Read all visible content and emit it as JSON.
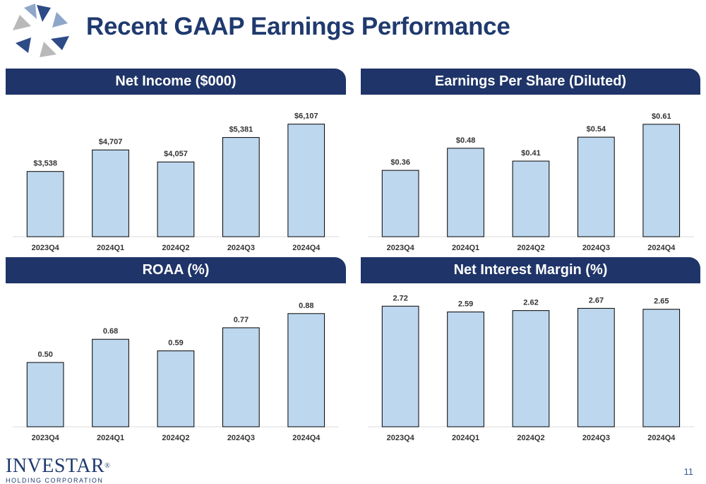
{
  "page": {
    "title": "Recent GAAP Earnings Performance",
    "page_number": "11"
  },
  "footer": {
    "brand": "INVESTAR",
    "brand_mark": "®",
    "subtitle": "HOLDING CORPORATION"
  },
  "colors": {
    "header_bg": "#1f3468",
    "title": "#1f3a6e",
    "bar_fill": "#bdd7ee",
    "bar_stroke": "#000000"
  },
  "chart_data": [
    {
      "type": "bar",
      "title": "Net Income ($000)",
      "categories": [
        "2023Q4",
        "2024Q1",
        "2024Q2",
        "2024Q3",
        "2024Q4"
      ],
      "values": [
        3538,
        4707,
        4057,
        5381,
        6107
      ],
      "labels": [
        "$3,538",
        "$4,707",
        "$4,057",
        "$5,381",
        "$6,107"
      ],
      "ylim": [
        0,
        6900
      ]
    },
    {
      "type": "bar",
      "title": "Earnings Per Share (Diluted)",
      "categories": [
        "2023Q4",
        "2024Q1",
        "2024Q2",
        "2024Q3",
        "2024Q4"
      ],
      "values": [
        0.36,
        0.48,
        0.41,
        0.54,
        0.61
      ],
      "labels": [
        "$0.36",
        "$0.48",
        "$0.41",
        "$0.54",
        "$0.61"
      ],
      "ylim": [
        0,
        0.69
      ]
    },
    {
      "type": "bar",
      "title": "ROAA (%)",
      "categories": [
        "2023Q4",
        "2024Q1",
        "2024Q2",
        "2024Q3",
        "2024Q4"
      ],
      "values": [
        0.5,
        0.68,
        0.59,
        0.77,
        0.88
      ],
      "labels": [
        "0.50",
        "0.68",
        "0.59",
        "0.77",
        "0.88"
      ],
      "ylim": [
        0,
        1.0
      ]
    },
    {
      "type": "bar",
      "title": "Net Interest Margin (%)",
      "categories": [
        "2023Q4",
        "2024Q1",
        "2024Q2",
        "2024Q3",
        "2024Q4"
      ],
      "values": [
        2.72,
        2.59,
        2.62,
        2.67,
        2.65
      ],
      "labels": [
        "2.72",
        "2.59",
        "2.62",
        "2.67",
        "2.65"
      ],
      "ylim": [
        0,
        2.9
      ]
    }
  ]
}
